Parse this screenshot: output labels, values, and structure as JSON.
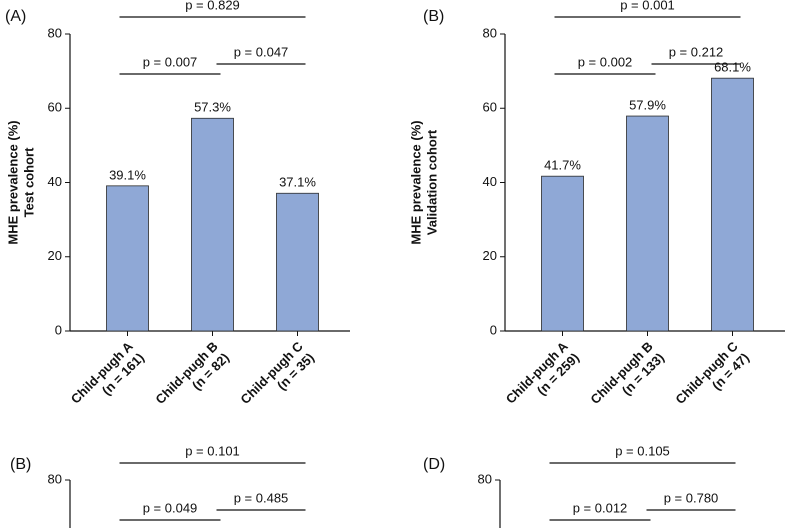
{
  "chart_data": [
    {
      "type": "bar",
      "panel": "(A)",
      "ylabel": "MHE prevalence (%)",
      "ylabel2": "Test cohort",
      "categories": [
        "Child-pugh A",
        "Child-pugh B",
        "Child-pugh C"
      ],
      "category_counts": [
        "(n = 161)",
        "(n = 82)",
        "(n = 35)"
      ],
      "values": [
        39.1,
        57.3,
        37.1
      ],
      "value_labels": [
        "39.1%",
        "57.3%",
        "37.1%"
      ],
      "color": "#8fa8d6",
      "ylim": [
        0,
        80
      ],
      "yticks": [
        0,
        20,
        40,
        60,
        80
      ],
      "annotations": [
        {
          "text": "p = 0.829",
          "span": [
            0,
            2
          ]
        },
        {
          "text": "p = 0.007",
          "span": [
            0,
            1
          ]
        },
        {
          "text": "p = 0.047",
          "span": [
            1,
            2
          ]
        }
      ]
    },
    {
      "type": "bar",
      "panel": "(B)",
      "ylabel": "MHE prevalence (%)",
      "ylabel2": "Validation cohort",
      "categories": [
        "Child-pugh A",
        "Child-pugh B",
        "Child-pugh C"
      ],
      "category_counts": [
        "(n = 259)",
        "(n = 133)",
        "(n = 47)"
      ],
      "values": [
        41.7,
        57.9,
        68.1
      ],
      "value_labels": [
        "41.7%",
        "57.9%",
        "68.1%"
      ],
      "color": "#8fa8d6",
      "ylim": [
        0,
        80
      ],
      "yticks": [
        0,
        20,
        40,
        60,
        80
      ],
      "annotations": [
        {
          "text": "p = 0.001",
          "span": [
            0,
            2
          ]
        },
        {
          "text": "p = 0.002",
          "span": [
            0,
            1
          ]
        },
        {
          "text": "p = 0.212",
          "span": [
            1,
            2
          ]
        }
      ]
    },
    {
      "type": "bar",
      "panel": "(B)",
      "ylim": [
        0,
        80
      ],
      "yticks": [
        80
      ],
      "annotations": [
        {
          "text": "p = 0.101",
          "span": [
            0,
            2
          ]
        },
        {
          "text": "p = 0.049",
          "span": [
            0,
            1
          ]
        },
        {
          "text": "p = 0.485",
          "span": [
            1,
            2
          ]
        }
      ]
    },
    {
      "type": "bar",
      "panel": "(D)",
      "ylim": [
        0,
        80
      ],
      "yticks": [
        80
      ],
      "annotations": [
        {
          "text": "p = 0.105",
          "span": [
            0,
            2
          ]
        },
        {
          "text": "p = 0.012",
          "span": [
            0,
            1
          ]
        },
        {
          "text": "p = 0.780",
          "span": [
            1,
            2
          ]
        }
      ]
    }
  ]
}
